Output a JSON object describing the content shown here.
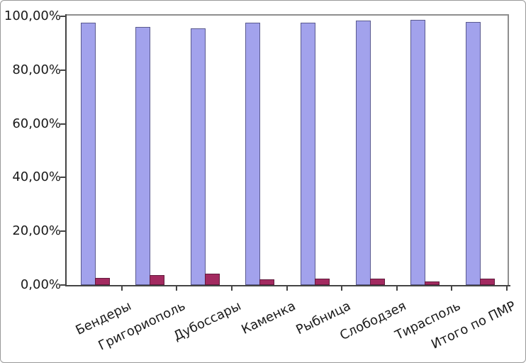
{
  "chart_data": {
    "type": "bar",
    "title": "",
    "xlabel": "",
    "ylabel": "",
    "categories": [
      "Бендеры",
      "Григориополь",
      "Дубоссары",
      "Каменка",
      "Рыбница",
      "Слободзея",
      "Тирасполь",
      "Итого по ПМР"
    ],
    "series": [
      {
        "name": "series_1",
        "color": "#A2A2EC",
        "border_color": "#5B5B8F",
        "values": [
          97.5,
          96.1,
          95.4,
          97.7,
          97.7,
          98.5,
          98.8,
          97.9
        ]
      },
      {
        "name": "series_2",
        "color": "#A32A60",
        "border_color": "#621C3D",
        "values": [
          2.7,
          3.8,
          4.3,
          2.1,
          2.5,
          2.3,
          1.4,
          2.5
        ]
      }
    ],
    "ylim": [
      0,
      100
    ],
    "ytick_labels": [
      "100,00%",
      "80,00%",
      "60,00%",
      "40,00%",
      "20,00%",
      "0,00%"
    ],
    "ytick_values": [
      100,
      80,
      60,
      40,
      20,
      0
    ],
    "grid": false,
    "legend_position": "none",
    "category_label_rotation_deg": -26
  },
  "frame": {
    "background": "#FFFFFF",
    "outer_border_color": "#999999",
    "plot_border_color": "#8E8E8E",
    "axis_color": "#444444",
    "text_color": "#1A1A1A"
  }
}
